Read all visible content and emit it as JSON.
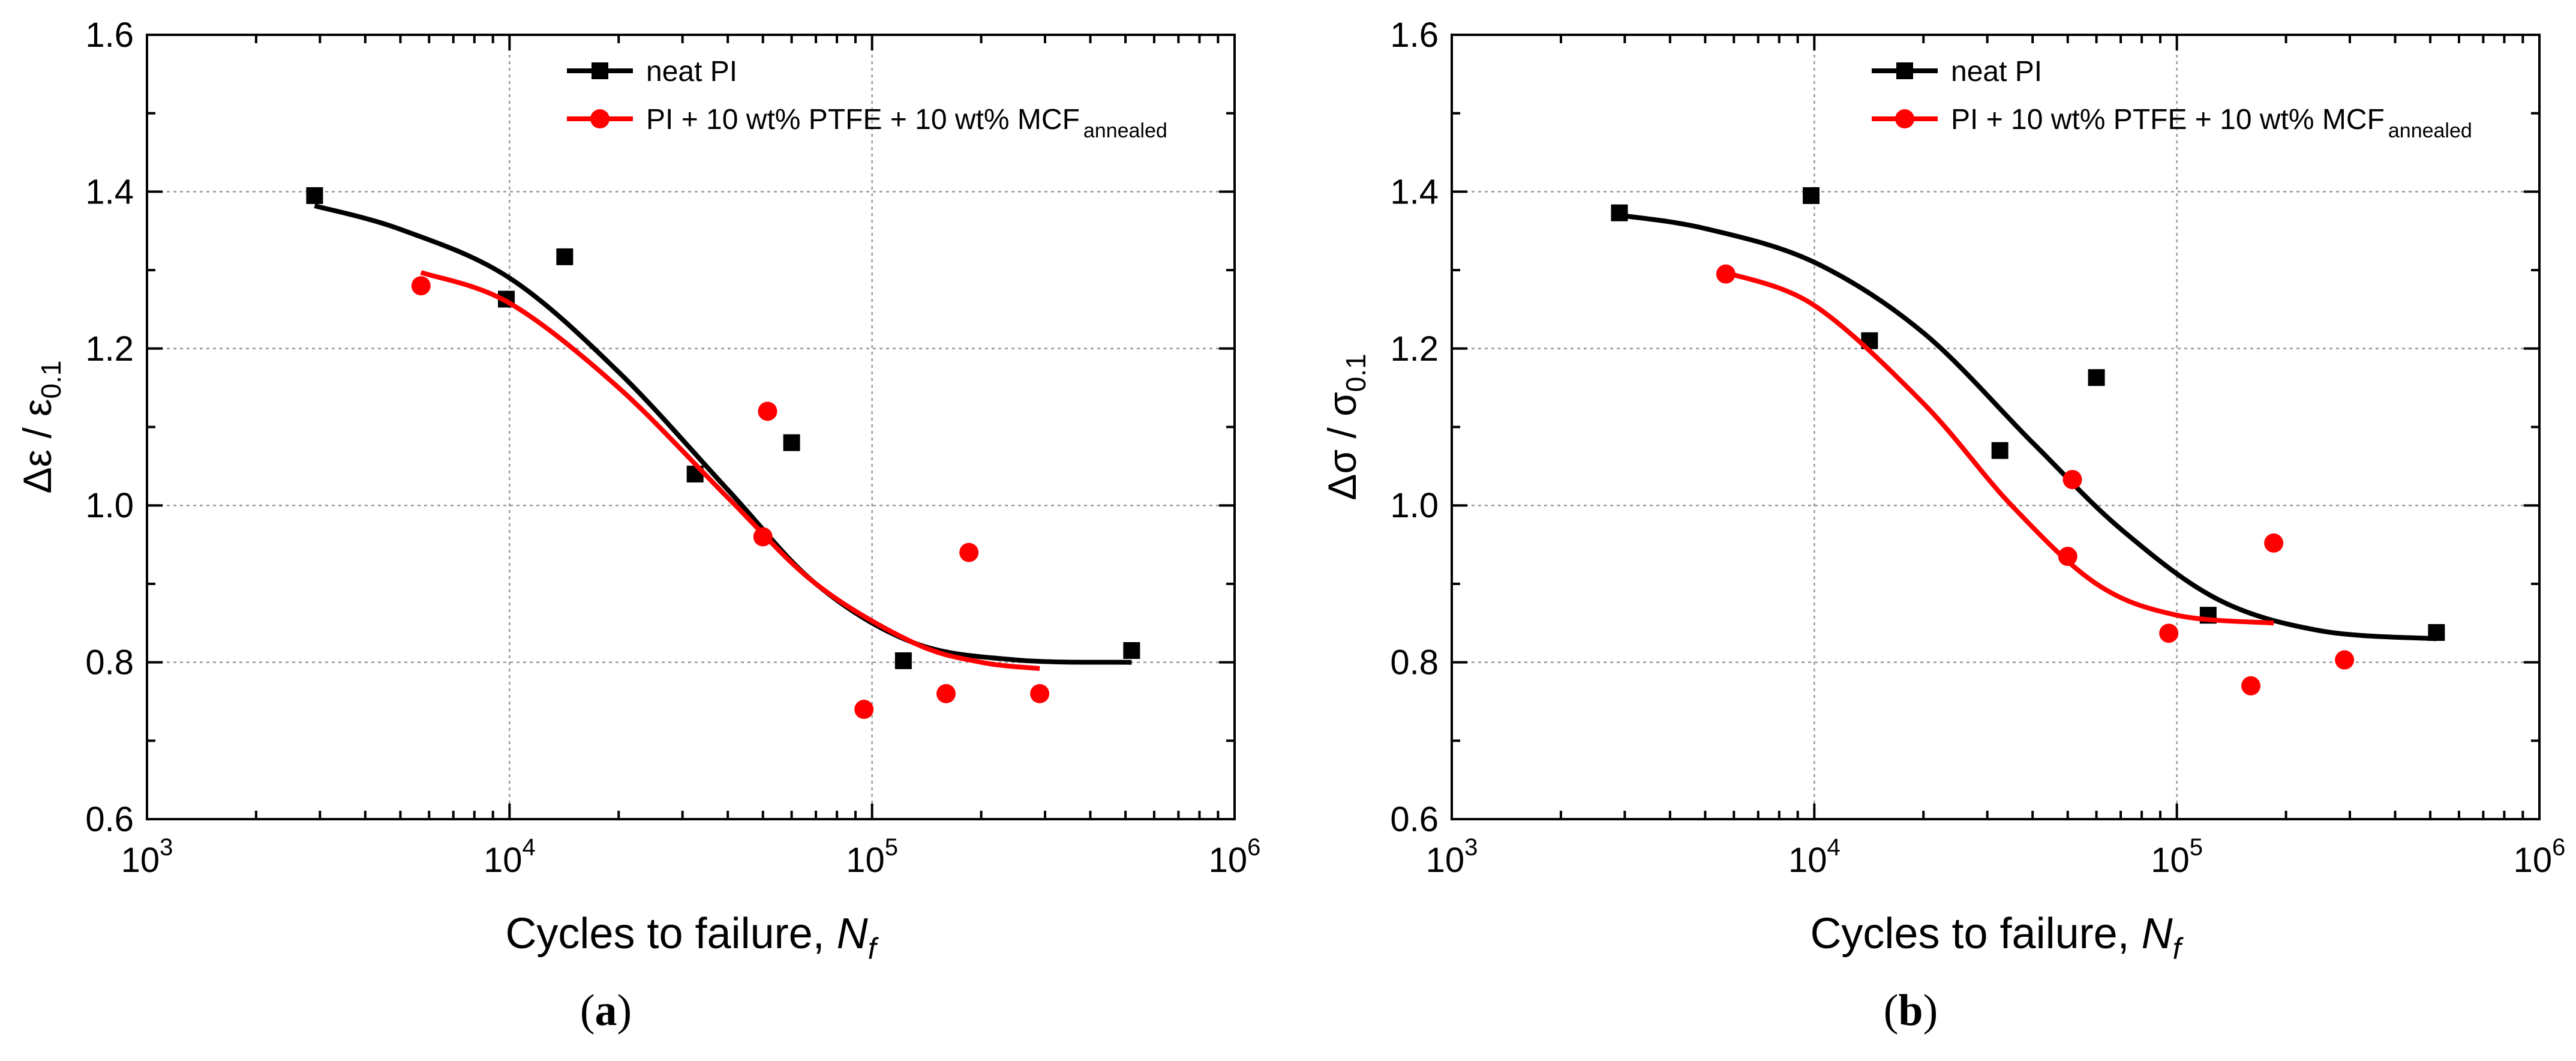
{
  "chart_data": [
    {
      "type": "scatter",
      "panel_label": "a",
      "ylabel_symbol": "Δε",
      "ylabel_subscript_symbol": "ε",
      "ylabel_subscript": "0.1",
      "xlabel": "Cycles to failure, ",
      "xlabel_var": "N",
      "xlabel_var_sub": "f",
      "x_scale": "log",
      "xlim": [
        1000,
        1000000
      ],
      "ylim": [
        0.6,
        1.6
      ],
      "x_ticks": [
        {
          "value": 1000,
          "base": "10",
          "exp": "3"
        },
        {
          "value": 10000,
          "base": "10",
          "exp": "4"
        },
        {
          "value": 100000,
          "base": "10",
          "exp": "5"
        },
        {
          "value": 1000000,
          "base": "10",
          "exp": "6"
        }
      ],
      "y_ticks": [
        "0.6",
        "0.8",
        "1.0",
        "1.2",
        "1.4",
        "1.6"
      ],
      "grid": "dotted, at major ticks",
      "legend_placement": "top",
      "series": [
        {
          "name": "neat PI",
          "marker": "square",
          "color": "#000000",
          "points": [
            [
              2900,
              1.395
            ],
            [
              9800,
              1.263
            ],
            [
              14200,
              1.317
            ],
            [
              32500,
              1.04
            ],
            [
              60000,
              1.08
            ],
            [
              122000,
              0.802
            ],
            [
              520000,
              0.815
            ]
          ],
          "fit": [
            [
              2900,
              1.382
            ],
            [
              5000,
              1.352
            ],
            [
              10000,
              1.29
            ],
            [
              20000,
              1.17
            ],
            [
              40000,
              1.02
            ],
            [
              70000,
              0.9
            ],
            [
              130000,
              0.825
            ],
            [
              250000,
              0.803
            ],
            [
              520000,
              0.8
            ]
          ]
        },
        {
          "name": "PI + 10 wt% PTFE + 10 wt% MCF",
          "name_sub": "annealed",
          "marker": "circle",
          "color": "#ff0000",
          "points": [
            [
              5700,
              1.28
            ],
            [
              50000,
              0.96
            ],
            [
              51500,
              1.12
            ],
            [
              95000,
              0.74
            ],
            [
              160000,
              0.76
            ],
            [
              185000,
              0.94
            ],
            [
              290000,
              0.76
            ]
          ],
          "fit": [
            [
              5700,
              1.297
            ],
            [
              10000,
              1.258
            ],
            [
              20000,
              1.15
            ],
            [
              40000,
              1.01
            ],
            [
              70000,
              0.9
            ],
            [
              130000,
              0.825
            ],
            [
              200000,
              0.8
            ],
            [
              290000,
              0.792
            ]
          ]
        }
      ]
    },
    {
      "type": "scatter",
      "panel_label": "b",
      "ylabel_symbol": "Δσ",
      "ylabel_subscript_symbol": "σ",
      "ylabel_subscript": "0.1",
      "xlabel": "Cycles to failure, ",
      "xlabel_var": "N",
      "xlabel_var_sub": "f",
      "x_scale": "log",
      "xlim": [
        1000,
        1000000
      ],
      "ylim": [
        0.6,
        1.6
      ],
      "x_ticks": [
        {
          "value": 1000,
          "base": "10",
          "exp": "3"
        },
        {
          "value": 10000,
          "base": "10",
          "exp": "4"
        },
        {
          "value": 100000,
          "base": "10",
          "exp": "5"
        },
        {
          "value": 1000000,
          "base": "10",
          "exp": "6"
        }
      ],
      "y_ticks": [
        "0.6",
        "0.8",
        "1.0",
        "1.2",
        "1.4",
        "1.6"
      ],
      "grid": "dotted, at major ticks",
      "legend_placement": "top",
      "series": [
        {
          "name": "neat PI",
          "marker": "square",
          "color": "#000000",
          "points": [
            [
              2900,
              1.373
            ],
            [
              9800,
              1.395
            ],
            [
              14200,
              1.21
            ],
            [
              32500,
              1.07
            ],
            [
              60000,
              1.163
            ],
            [
              122000,
              0.86
            ],
            [
              520000,
              0.838
            ]
          ],
          "fit": [
            [
              2900,
              1.37
            ],
            [
              5000,
              1.353
            ],
            [
              10000,
              1.31
            ],
            [
              20000,
              1.22
            ],
            [
              40000,
              1.08
            ],
            [
              70000,
              0.97
            ],
            [
              130000,
              0.88
            ],
            [
              250000,
              0.84
            ],
            [
              520000,
              0.83
            ]
          ]
        },
        {
          "name": "PI + 10 wt% PTFE + 10 wt% MCF",
          "name_sub": "annealed",
          "marker": "circle",
          "color": "#ff0000",
          "points": [
            [
              5700,
              1.295
            ],
            [
              50000,
              0.935
            ],
            [
              51500,
              1.033
            ],
            [
              95000,
              0.837
            ],
            [
              160000,
              0.77
            ],
            [
              185000,
              0.952
            ],
            [
              290000,
              0.803
            ]
          ],
          "fit": [
            [
              5700,
              1.297
            ],
            [
              10000,
              1.255
            ],
            [
              20000,
              1.13
            ],
            [
              35000,
              1.0
            ],
            [
              60000,
              0.9
            ],
            [
              100000,
              0.86
            ],
            [
              185000,
              0.85
            ]
          ]
        }
      ]
    }
  ]
}
